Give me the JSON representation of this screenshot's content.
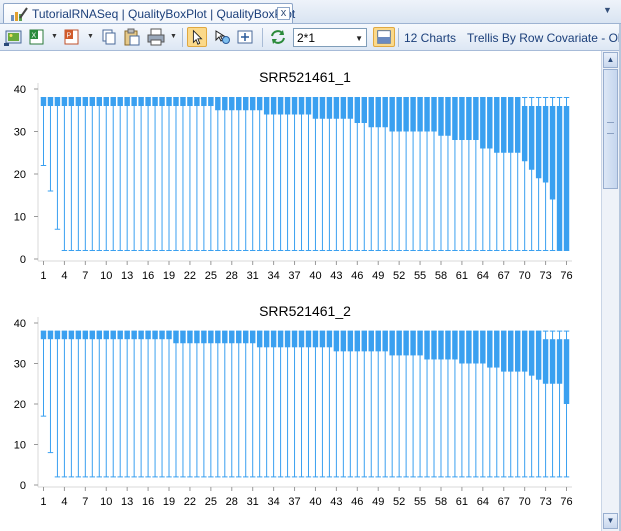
{
  "tab": {
    "title": "TutorialRNASeq | QualityBoxPlot | QualityBoxPlot",
    "close_glyph": "x",
    "menu_glyph": "▼",
    "icon": "chart-pen-icon"
  },
  "toolbar": {
    "layout_value": "2*1",
    "charts_count": "12 Charts",
    "trellis_label": "Trellis By Row Covariate - Ob",
    "icons": [
      "image-export-icon",
      "excel-export-icon",
      "powerpoint-export-icon",
      "copy-icon",
      "clipboard-icon",
      "print-icon",
      "pointer-icon",
      "zoom-tool-icon",
      "fit-window-icon",
      "refresh-icon",
      "layout-icon"
    ]
  },
  "colors": {
    "box": "#3aa0f0",
    "whisker": "#3aa0f0",
    "accent": "#1b3f7a"
  },
  "chart_data": [
    {
      "type": "box",
      "title": "SRR521461_1",
      "ylim": [
        0,
        40
      ],
      "yticks": [
        "0",
        "10",
        "20",
        "30",
        "40"
      ],
      "xticks": [
        "1",
        "4",
        "7",
        "10",
        "13",
        "16",
        "19",
        "22",
        "25",
        "28",
        "31",
        "34",
        "37",
        "40",
        "43",
        "46",
        "49",
        "52",
        "55",
        "58",
        "61",
        "64",
        "67",
        "70",
        "73",
        "76"
      ],
      "positions": 76,
      "q1": [
        36,
        36,
        36,
        36,
        36,
        36,
        36,
        36,
        36,
        36,
        36,
        36,
        36,
        36,
        36,
        36,
        36,
        36,
        36,
        36,
        36,
        36,
        36,
        36,
        36,
        35,
        35,
        35,
        35,
        35,
        35,
        35,
        34,
        34,
        34,
        34,
        34,
        34,
        34,
        33,
        33,
        33,
        33,
        33,
        33,
        32,
        32,
        31,
        31,
        31,
        30,
        30,
        30,
        30,
        30,
        30,
        30,
        29,
        29,
        28,
        28,
        28,
        28,
        26,
        26,
        25,
        25,
        25,
        25,
        23,
        21,
        19,
        18,
        14,
        2,
        2
      ],
      "q3": [
        38,
        38,
        38,
        38,
        38,
        38,
        38,
        38,
        38,
        38,
        38,
        38,
        38,
        38,
        38,
        38,
        38,
        38,
        38,
        38,
        38,
        38,
        38,
        38,
        38,
        38,
        38,
        38,
        38,
        38,
        38,
        38,
        38,
        38,
        38,
        38,
        38,
        38,
        38,
        38,
        38,
        38,
        38,
        38,
        38,
        38,
        38,
        38,
        38,
        38,
        38,
        38,
        38,
        38,
        38,
        38,
        38,
        38,
        38,
        38,
        38,
        38,
        38,
        38,
        38,
        38,
        38,
        38,
        38,
        36,
        36,
        36,
        36,
        36,
        36,
        36
      ],
      "lower_whisker": [
        22,
        16,
        7,
        2,
        2,
        2,
        2,
        2,
        2,
        2,
        2,
        2,
        2,
        2,
        2,
        2,
        2,
        2,
        2,
        2,
        2,
        2,
        2,
        2,
        2,
        2,
        2,
        2,
        2,
        2,
        2,
        2,
        2,
        2,
        2,
        2,
        2,
        2,
        2,
        2,
        2,
        2,
        2,
        2,
        2,
        2,
        2,
        2,
        2,
        2,
        2,
        2,
        2,
        2,
        2,
        2,
        2,
        2,
        2,
        2,
        2,
        2,
        2,
        2,
        2,
        2,
        2,
        2,
        2,
        2,
        2,
        2,
        2,
        2,
        2,
        2
      ],
      "upper_whisker": [
        38,
        38,
        38,
        38,
        38,
        38,
        38,
        38,
        38,
        38,
        38,
        38,
        38,
        38,
        38,
        38,
        38,
        38,
        38,
        38,
        38,
        38,
        38,
        38,
        38,
        38,
        38,
        38,
        38,
        38,
        38,
        38,
        38,
        38,
        38,
        38,
        38,
        38,
        38,
        38,
        38,
        38,
        38,
        38,
        38,
        38,
        38,
        38,
        38,
        38,
        38,
        38,
        38,
        38,
        38,
        38,
        38,
        38,
        38,
        38,
        38,
        38,
        38,
        38,
        38,
        38,
        38,
        38,
        38,
        38,
        38,
        38,
        38,
        38,
        38,
        38
      ]
    },
    {
      "type": "box",
      "title": "SRR521461_2",
      "ylim": [
        0,
        40
      ],
      "yticks": [
        "0",
        "10",
        "20",
        "30",
        "40"
      ],
      "xticks": [
        "1",
        "4",
        "7",
        "10",
        "13",
        "16",
        "19",
        "22",
        "25",
        "28",
        "31",
        "34",
        "37",
        "40",
        "43",
        "46",
        "49",
        "52",
        "55",
        "58",
        "61",
        "64",
        "67",
        "70",
        "73",
        "76"
      ],
      "positions": 76,
      "q1": [
        36,
        36,
        36,
        36,
        36,
        36,
        36,
        36,
        36,
        36,
        36,
        36,
        36,
        36,
        36,
        36,
        36,
        36,
        36,
        35,
        35,
        35,
        35,
        35,
        35,
        35,
        35,
        35,
        35,
        35,
        35,
        34,
        34,
        34,
        34,
        34,
        34,
        34,
        34,
        34,
        34,
        34,
        33,
        33,
        33,
        33,
        33,
        33,
        33,
        33,
        32,
        32,
        32,
        32,
        32,
        31,
        31,
        31,
        31,
        31,
        30,
        30,
        30,
        30,
        29,
        29,
        28,
        28,
        28,
        28,
        27,
        26,
        25,
        25,
        25,
        20
      ],
      "q3": [
        38,
        38,
        38,
        38,
        38,
        38,
        38,
        38,
        38,
        38,
        38,
        38,
        38,
        38,
        38,
        38,
        38,
        38,
        38,
        38,
        38,
        38,
        38,
        38,
        38,
        38,
        38,
        38,
        38,
        38,
        38,
        38,
        38,
        38,
        38,
        38,
        38,
        38,
        38,
        38,
        38,
        38,
        38,
        38,
        38,
        38,
        38,
        38,
        38,
        38,
        38,
        38,
        38,
        38,
        38,
        38,
        38,
        38,
        38,
        38,
        38,
        38,
        38,
        38,
        38,
        38,
        38,
        38,
        38,
        38,
        38,
        38,
        36,
        36,
        36,
        36
      ],
      "lower_whisker": [
        17,
        8,
        2,
        2,
        2,
        2,
        2,
        2,
        2,
        2,
        2,
        2,
        2,
        2,
        2,
        2,
        2,
        2,
        2,
        2,
        2,
        2,
        2,
        2,
        2,
        2,
        2,
        2,
        2,
        2,
        2,
        2,
        2,
        2,
        2,
        2,
        2,
        2,
        2,
        2,
        2,
        2,
        2,
        2,
        2,
        2,
        2,
        2,
        2,
        2,
        2,
        2,
        2,
        2,
        2,
        2,
        2,
        2,
        2,
        2,
        2,
        2,
        2,
        2,
        2,
        2,
        2,
        2,
        2,
        2,
        2,
        2,
        2,
        2,
        2,
        2
      ],
      "upper_whisker": [
        38,
        38,
        38,
        38,
        38,
        38,
        38,
        38,
        38,
        38,
        38,
        38,
        38,
        38,
        38,
        38,
        38,
        38,
        38,
        38,
        38,
        38,
        38,
        38,
        38,
        38,
        38,
        38,
        38,
        38,
        38,
        38,
        38,
        38,
        38,
        38,
        38,
        38,
        38,
        38,
        38,
        38,
        38,
        38,
        38,
        38,
        38,
        38,
        38,
        38,
        38,
        38,
        38,
        38,
        38,
        38,
        38,
        38,
        38,
        38,
        38,
        38,
        38,
        38,
        38,
        38,
        38,
        38,
        38,
        38,
        38,
        38,
        38,
        38,
        38,
        38
      ]
    }
  ]
}
